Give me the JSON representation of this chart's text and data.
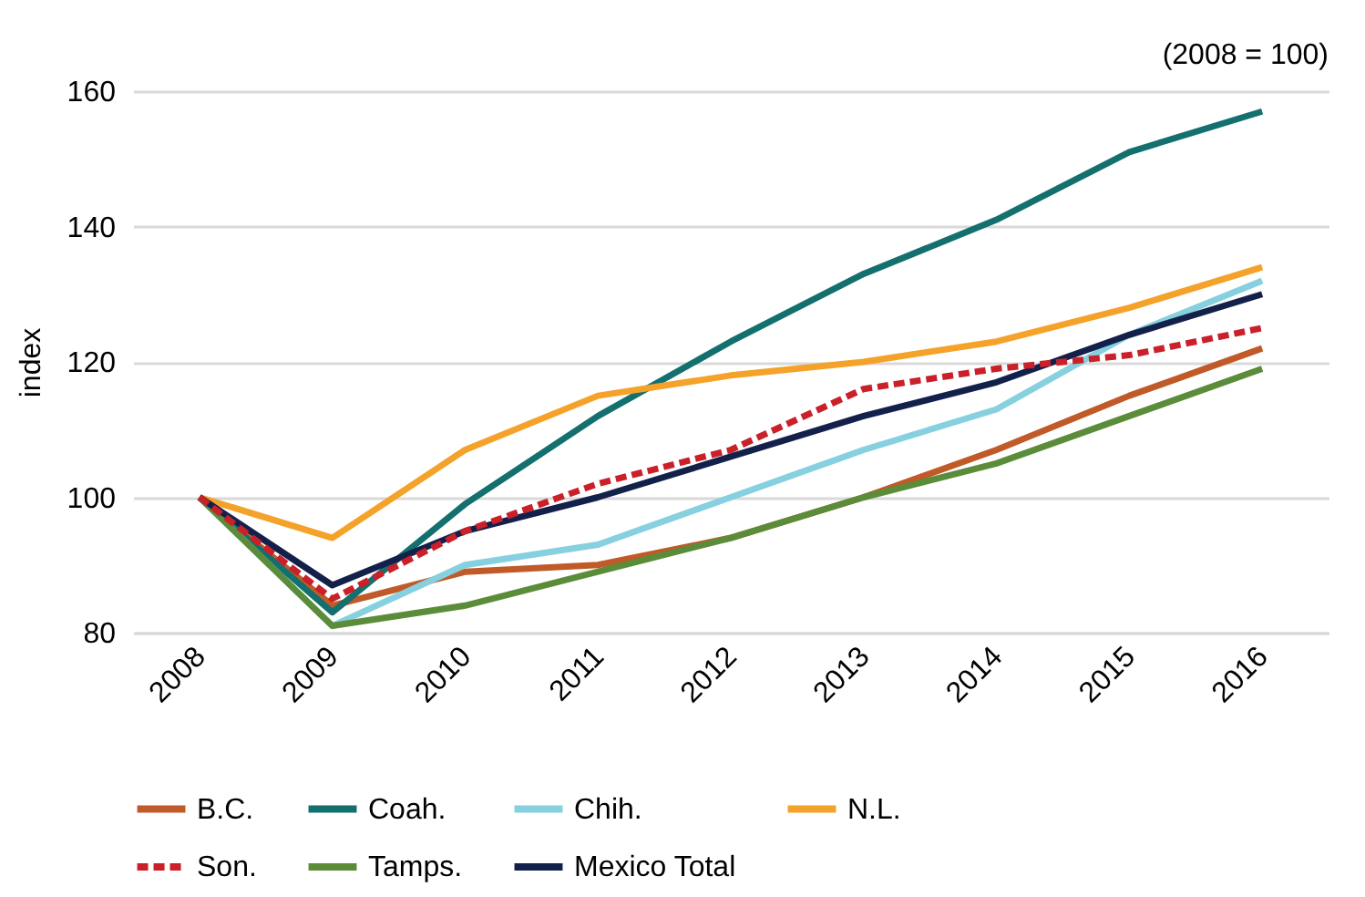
{
  "chart_data": {
    "type": "line",
    "ylabel": "index",
    "annotations": [
      "(2008 = 100)"
    ],
    "categories": [
      "2008",
      "2009",
      "2010",
      "2011",
      "2012",
      "2013",
      "2014",
      "2015",
      "2016"
    ],
    "ylim": [
      80,
      160
    ],
    "yticks": [
      80,
      100,
      120,
      140,
      160
    ],
    "grid": "y",
    "legend": "bottom",
    "series": [
      {
        "name": "B.C.",
        "color": "#c05a28",
        "values": [
          100,
          84,
          89,
          90,
          94,
          100,
          107,
          115,
          122
        ]
      },
      {
        "name": "Coah.",
        "color": "#13706f",
        "values": [
          100,
          83,
          99,
          112,
          123,
          133,
          141,
          151,
          157
        ]
      },
      {
        "name": "Chih.",
        "color": "#86d0e0",
        "values": [
          100,
          81,
          90,
          93,
          100,
          107,
          113,
          124,
          132
        ]
      },
      {
        "name": "N.L.",
        "color": "#f4a22a",
        "values": [
          100,
          94,
          107,
          115,
          118,
          120,
          123,
          128,
          134
        ]
      },
      {
        "name": "Son.",
        "color": "#c9202a",
        "line_style": "dashed",
        "values": [
          100,
          85,
          95,
          102,
          107,
          116,
          119,
          121,
          125
        ]
      },
      {
        "name": "Tamps.",
        "color": "#5a8c3a",
        "values": [
          100,
          81,
          84,
          89,
          94,
          100,
          105,
          112,
          119
        ]
      },
      {
        "name": "Mexico Total",
        "color": "#13214a",
        "values": [
          100,
          87,
          95,
          100,
          106,
          112,
          117,
          124,
          130
        ]
      }
    ]
  }
}
